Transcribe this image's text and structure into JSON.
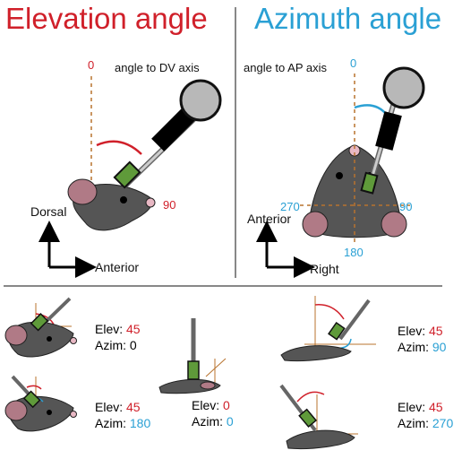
{
  "titles": {
    "elevation": "Elevation angle",
    "azimuth": "Azimuth angle"
  },
  "elevation_panel": {
    "reference": "angle to DV axis",
    "angle_zero": "0",
    "angle_ninety": "90",
    "axis_vertical": "Dorsal",
    "axis_horizontal": "Anterior"
  },
  "azimuth_panel": {
    "reference": "angle to AP axis",
    "angle_zero": "0",
    "angle_ninety": "90",
    "angle_one_eighty": "180",
    "angle_two_seventy": "270",
    "axis_vertical": "Anterior",
    "axis_horizontal": "Right"
  },
  "examples": [
    {
      "elev_label": "Elev:",
      "elev_value": "45",
      "azim_label": "Azim:",
      "azim_value": "0"
    },
    {
      "elev_label": "Elev:",
      "elev_value": "45",
      "azim_label": "Azim:",
      "azim_value": "180"
    },
    {
      "elev_label": "Elev:",
      "elev_value": "0",
      "azim_label": "Azim:",
      "azim_value": "0"
    },
    {
      "elev_label": "Elev:",
      "elev_value": "45",
      "azim_label": "Azim:",
      "azim_value": "90"
    },
    {
      "elev_label": "Elev:",
      "elev_value": "45",
      "azim_label": "Azim:",
      "azim_value": "270"
    }
  ],
  "colors": {
    "elevation": "#d0202a",
    "azimuth": "#2aa0d4",
    "axis_dash": "#b8732e",
    "probe_green": "#5f9a3a"
  }
}
